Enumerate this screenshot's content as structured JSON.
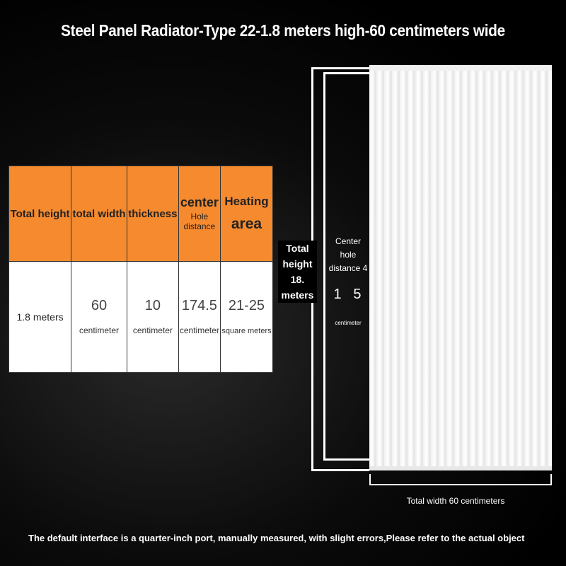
{
  "title": "Steel Panel Radiator-Type 22-1.8 meters high-60 centimeters wide",
  "table": {
    "headers": [
      {
        "main": "Total height"
      },
      {
        "main": "total width"
      },
      {
        "main": "thickness"
      },
      {
        "main": "center",
        "sub": "Hole distance"
      },
      {
        "main": "Heating",
        "sub": "area"
      }
    ],
    "values": [
      {
        "main": "1.8 meters"
      },
      {
        "main": "60",
        "unit": "centimeter"
      },
      {
        "main": "10",
        "unit": "centimeter"
      },
      {
        "main": "174.5",
        "unit": "centimeter"
      },
      {
        "main": "21-25",
        "unit": "square meters"
      }
    ]
  },
  "diagram": {
    "total_height": "Total height 18. meters",
    "center_hole": "Center hole distance 4",
    "center_hole_value": "1   5",
    "center_hole_unit": "centimeter",
    "total_width": "Total width 60 centimeters"
  },
  "note": "The default interface is a quarter-inch port, manually measured, with slight errors,Please refer to the actual object"
}
